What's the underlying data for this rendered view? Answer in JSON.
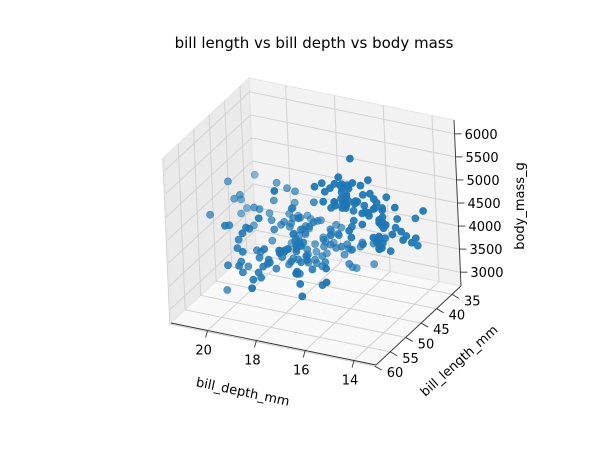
{
  "colors": {
    "marker": "#1f77b4",
    "pane_left": "#eaeaea",
    "pane_back": "#f2f2f2",
    "pane_floor": "#f8f8f8"
  },
  "chart_data": {
    "type": "scatter3d",
    "title": "bill length vs bill depth vs body mass",
    "xlabel": "bill_depth_mm",
    "ylabel": "bill_length_mm",
    "zlabel": "body_mass_g",
    "xlim": [
      13.1,
      21.5
    ],
    "ylim": [
      32.1,
      59.6
    ],
    "zlim": [
      2700,
      6300
    ],
    "xticks": [
      14,
      16,
      18,
      20
    ],
    "yticks": [
      35,
      40,
      45,
      50,
      55,
      60
    ],
    "zticks": [
      3000,
      3500,
      4000,
      4500,
      5000,
      5500,
      6000
    ],
    "grid": true,
    "points": [
      [
        18.7,
        39.1,
        3750
      ],
      [
        17.4,
        39.5,
        3800
      ],
      [
        18.0,
        40.3,
        3250
      ],
      [
        19.3,
        36.7,
        3450
      ],
      [
        20.6,
        39.3,
        3650
      ],
      [
        17.8,
        38.9,
        3625
      ],
      [
        19.6,
        39.2,
        4675
      ],
      [
        18.1,
        34.1,
        3475
      ],
      [
        20.2,
        42.0,
        4250
      ],
      [
        17.1,
        37.8,
        3300
      ],
      [
        17.3,
        37.8,
        3700
      ],
      [
        17.6,
        41.1,
        3200
      ],
      [
        21.2,
        38.6,
        3800
      ],
      [
        21.1,
        34.6,
        4400
      ],
      [
        17.8,
        36.6,
        3700
      ],
      [
        19.0,
        38.7,
        3450
      ],
      [
        20.7,
        42.5,
        4500
      ],
      [
        18.4,
        34.4,
        3325
      ],
      [
        21.5,
        46.0,
        4200
      ],
      [
        18.3,
        37.8,
        3400
      ],
      [
        18.7,
        37.7,
        3600
      ],
      [
        19.2,
        35.9,
        3800
      ],
      [
        18.1,
        38.2,
        3950
      ],
      [
        17.2,
        38.8,
        3800
      ],
      [
        18.9,
        35.3,
        3800
      ],
      [
        18.6,
        40.6,
        3550
      ],
      [
        17.9,
        40.5,
        3200
      ],
      [
        18.6,
        37.9,
        3150
      ],
      [
        18.9,
        40.5,
        3950
      ],
      [
        16.7,
        39.5,
        3250
      ],
      [
        18.1,
        37.2,
        3900
      ],
      [
        17.8,
        39.5,
        3300
      ],
      [
        18.9,
        40.9,
        3900
      ],
      [
        17.0,
        36.4,
        3325
      ],
      [
        21.1,
        39.2,
        4150
      ],
      [
        20.0,
        38.8,
        3950
      ],
      [
        18.5,
        42.2,
        3550
      ],
      [
        19.3,
        37.6,
        3300
      ],
      [
        19.1,
        39.8,
        4650
      ],
      [
        18.0,
        36.5,
        3150
      ],
      [
        18.4,
        40.8,
        3900
      ],
      [
        18.5,
        36.0,
        3100
      ],
      [
        19.7,
        44.1,
        4400
      ],
      [
        16.9,
        37.0,
        3000
      ],
      [
        18.8,
        39.6,
        4600
      ],
      [
        19.0,
        41.1,
        3425
      ],
      [
        18.9,
        36.2,
        2975
      ],
      [
        17.9,
        37.5,
        3475
      ],
      [
        21.2,
        42.3,
        4725
      ],
      [
        17.7,
        39.6,
        3525
      ],
      [
        18.9,
        40.1,
        4250
      ],
      [
        17.9,
        35.0,
        3300
      ],
      [
        19.5,
        42.0,
        4050
      ],
      [
        18.1,
        34.5,
        3400
      ],
      [
        18.6,
        41.4,
        3700
      ],
      [
        17.5,
        39.0,
        3550
      ],
      [
        18.8,
        40.6,
        4300
      ],
      [
        16.6,
        36.5,
        3450
      ],
      [
        19.1,
        37.6,
        4200
      ],
      [
        16.9,
        35.7,
        2900
      ],
      [
        21.1,
        41.3,
        4300
      ],
      [
        17.0,
        37.6,
        3525
      ],
      [
        18.2,
        41.1,
        3500
      ],
      [
        17.1,
        36.4,
        3350
      ],
      [
        18.0,
        41.6,
        4050
      ],
      [
        16.2,
        35.5,
        3050
      ],
      [
        19.1,
        41.1,
        4000
      ],
      [
        16.6,
        35.9,
        3500
      ],
      [
        19.4,
        41.8,
        4475
      ],
      [
        19.0,
        33.5,
        3600
      ],
      [
        18.4,
        39.7,
        3900
      ],
      [
        17.2,
        39.6,
        3550
      ],
      [
        18.9,
        45.8,
        4150
      ],
      [
        17.5,
        35.5,
        3700
      ],
      [
        18.5,
        42.8,
        4250
      ],
      [
        16.8,
        40.9,
        3700
      ],
      [
        19.4,
        37.2,
        3900
      ],
      [
        16.1,
        36.2,
        3550
      ],
      [
        19.1,
        42.1,
        4000
      ],
      [
        17.2,
        34.6,
        3200
      ],
      [
        17.6,
        42.9,
        4700
      ],
      [
        21.2,
        36.7,
        3800
      ],
      [
        17.8,
        35.1,
        4200
      ],
      [
        19.0,
        37.3,
        3350
      ],
      [
        19.6,
        41.3,
        3550
      ],
      [
        17.6,
        36.3,
        3800
      ],
      [
        18.8,
        36.9,
        3500
      ],
      [
        18.8,
        38.3,
        3950
      ],
      [
        18.8,
        38.9,
        3600
      ],
      [
        18.8,
        35.7,
        3550
      ],
      [
        17.3,
        46.5,
        3500
      ],
      [
        19.9,
        50.0,
        3900
      ],
      [
        16.1,
        51.3,
        3650
      ],
      [
        17.9,
        45.4,
        3525
      ],
      [
        19.5,
        52.7,
        3725
      ],
      [
        17.8,
        45.2,
        3950
      ],
      [
        20.0,
        46.1,
        3250
      ],
      [
        17.3,
        51.3,
        3750
      ],
      [
        18.1,
        46.0,
        4150
      ],
      [
        17.3,
        51.3,
        3700
      ],
      [
        18.4,
        46.6,
        3800
      ],
      [
        16.4,
        49.0,
        3775
      ],
      [
        18.9,
        50.5,
        3400
      ],
      [
        17.5,
        46.6,
        3775
      ],
      [
        17.1,
        52.0,
        3550
      ],
      [
        18.0,
        45.9,
        3900
      ],
      [
        19.0,
        50.5,
        3500
      ],
      [
        17.0,
        50.3,
        3975
      ],
      [
        18.3,
        58.0,
        3700
      ],
      [
        17.8,
        46.4,
        4550
      ],
      [
        20.3,
        49.2,
        4300
      ],
      [
        17.3,
        42.4,
        3400
      ],
      [
        19.2,
        48.5,
        3675
      ],
      [
        18.7,
        43.2,
        3250
      ],
      [
        18.5,
        50.6,
        3775
      ],
      [
        18.5,
        46.7,
        3650
      ],
      [
        19.4,
        52.0,
        4400
      ],
      [
        18.8,
        50.5,
        3650
      ],
      [
        19.9,
        49.5,
        4050
      ],
      [
        18.8,
        46.4,
        3350
      ],
      [
        20.0,
        52.8,
        4550
      ],
      [
        18.2,
        40.9,
        3200
      ],
      [
        17.6,
        54.2,
        4300
      ],
      [
        18.6,
        42.5,
        3350
      ],
      [
        18.0,
        51.0,
        4100
      ],
      [
        19.8,
        49.7,
        3600
      ],
      [
        17.8,
        47.5,
        3900
      ],
      [
        18.5,
        47.6,
        3850
      ],
      [
        18.7,
        52.0,
        4800
      ],
      [
        20.8,
        46.9,
        2700
      ],
      [
        16.8,
        53.5,
        4500
      ],
      [
        18.1,
        49.0,
        3950
      ],
      [
        19.6,
        46.2,
        3650
      ],
      [
        20.2,
        50.9,
        3550
      ],
      [
        18.3,
        45.5,
        3500
      ],
      [
        17.4,
        50.9,
        3675
      ],
      [
        19.4,
        50.8,
        4450
      ],
      [
        19.7,
        50.1,
        3400
      ],
      [
        19.5,
        49.0,
        4300
      ],
      [
        17.1,
        51.5,
        3250
      ],
      [
        18.7,
        49.8,
        3675
      ],
      [
        16.7,
        48.1,
        3325
      ],
      [
        19.5,
        51.4,
        3950
      ],
      [
        19.5,
        45.7,
        3600
      ],
      [
        18.7,
        50.7,
        4050
      ],
      [
        18.4,
        42.5,
        3350
      ],
      [
        19.0,
        52.2,
        3450
      ],
      [
        18.0,
        45.2,
        3250
      ],
      [
        17.9,
        49.3,
        4050
      ],
      [
        18.6,
        50.2,
        3800
      ],
      [
        13.2,
        46.1,
        4500
      ],
      [
        16.3,
        50.0,
        5700
      ],
      [
        14.1,
        48.7,
        4450
      ],
      [
        15.2,
        50.0,
        5700
      ],
      [
        14.5,
        47.6,
        5400
      ],
      [
        13.5,
        46.5,
        4550
      ],
      [
        14.6,
        45.4,
        4800
      ],
      [
        15.3,
        46.7,
        5200
      ],
      [
        13.4,
        43.3,
        4400
      ],
      [
        15.4,
        46.8,
        5150
      ],
      [
        13.7,
        40.9,
        4650
      ],
      [
        16.1,
        49.0,
        5550
      ],
      [
        13.7,
        45.5,
        4650
      ],
      [
        14.6,
        48.4,
        5850
      ],
      [
        14.6,
        45.8,
        4200
      ],
      [
        15.7,
        49.3,
        5850
      ],
      [
        13.5,
        42.0,
        4150
      ],
      [
        15.2,
        49.2,
        6300
      ],
      [
        14.5,
        46.2,
        4800
      ],
      [
        15.1,
        48.7,
        5350
      ],
      [
        14.3,
        50.2,
        5700
      ],
      [
        14.5,
        45.1,
        5000
      ],
      [
        14.5,
        46.5,
        4400
      ],
      [
        15.8,
        46.3,
        5050
      ],
      [
        13.1,
        42.9,
        5000
      ],
      [
        15.1,
        46.1,
        5100
      ],
      [
        14.3,
        44.5,
        4100
      ],
      [
        15.0,
        47.8,
        5650
      ],
      [
        14.3,
        48.2,
        4600
      ],
      [
        15.3,
        50.0,
        5550
      ],
      [
        15.3,
        47.3,
        5250
      ],
      [
        14.2,
        42.8,
        4700
      ],
      [
        14.5,
        45.1,
        5050
      ],
      [
        17.0,
        59.6,
        6050
      ],
      [
        14.8,
        49.1,
        5150
      ],
      [
        16.4,
        48.4,
        5400
      ],
      [
        16.3,
        42.6,
        4950
      ],
      [
        14.4,
        44.4,
        5250
      ],
      [
        17.5,
        44.0,
        4350
      ],
      [
        15.7,
        48.7,
        5350
      ],
      [
        15.0,
        42.7,
        3950
      ],
      [
        15.6,
        49.6,
        5700
      ],
      [
        14.5,
        45.3,
        4300
      ],
      [
        15.3,
        49.6,
        4750
      ],
      [
        14.0,
        50.5,
        5550
      ],
      [
        15.0,
        43.6,
        4900
      ],
      [
        15.3,
        45.5,
        4200
      ],
      [
        15.4,
        50.5,
        5400
      ],
      [
        14.0,
        44.9,
        5100
      ],
      [
        16.1,
        45.2,
        5300
      ],
      [
        15.8,
        46.6,
        5000
      ],
      [
        14.4,
        48.5,
        5250
      ],
      [
        14.5,
        45.1,
        4850
      ],
      [
        15.8,
        50.1,
        5350
      ],
      [
        14.2,
        46.5,
        4800
      ],
      [
        15.7,
        45.0,
        4850
      ],
      [
        14.6,
        43.8,
        4300
      ],
      [
        15.0,
        45.5,
        4850
      ],
      [
        13.8,
        43.2,
        4400
      ],
      [
        15.2,
        50.4,
        5800
      ],
      [
        14.6,
        45.3,
        4750
      ],
      [
        15.9,
        46.2,
        5100
      ],
      [
        15.7,
        45.7,
        4550
      ],
      [
        14.8,
        54.3,
        5650
      ],
      [
        15.6,
        45.8,
        4700
      ],
      [
        15.5,
        49.8,
        5750
      ],
      [
        16.0,
        46.2,
        5300
      ],
      [
        15.1,
        49.5,
        5800
      ],
      [
        15.0,
        43.5,
        4150
      ],
      [
        15.4,
        50.7,
        5300
      ],
      [
        15.0,
        47.7,
        4800
      ],
      [
        15.7,
        46.4,
        5150
      ],
      [
        14.5,
        48.2,
        4600
      ],
      [
        14.2,
        46.5,
        4800
      ],
      [
        15.1,
        46.4,
        5350
      ],
      [
        14.6,
        48.6,
        5150
      ],
      [
        15.5,
        47.5,
        4450
      ],
      [
        14.4,
        51.1,
        5350
      ],
      [
        16.0,
        45.2,
        5000
      ],
      [
        14.5,
        45.2,
        4750
      ],
      [
        15.9,
        49.1,
        5200
      ],
      [
        13.7,
        52.5,
        4975
      ],
      [
        16.3,
        47.4,
        5000
      ],
      [
        13.9,
        50.0,
        5050
      ],
      [
        14.5,
        44.9,
        4600
      ],
      [
        16.5,
        50.8,
        5650
      ],
      [
        14.2,
        43.4,
        4550
      ],
      [
        16.1,
        51.3,
        5400
      ],
      [
        13.8,
        47.5,
        4700
      ],
      [
        15.5,
        52.1,
        5900
      ]
    ]
  }
}
